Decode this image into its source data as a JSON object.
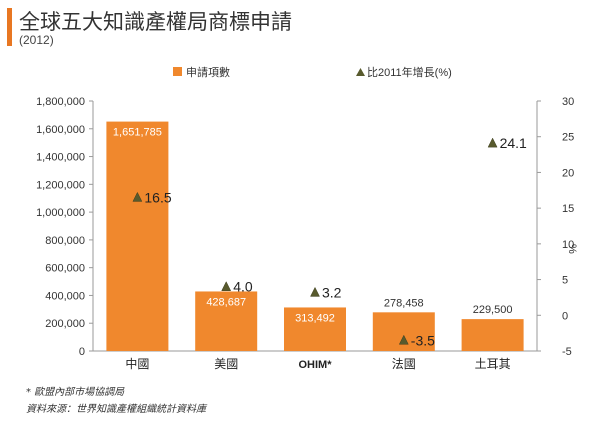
{
  "header": {
    "title": "全球五大知識產權局商標申請",
    "subtitle": "(2012)"
  },
  "colors": {
    "accent": "#E87722",
    "bar": "#F0882D",
    "marker": "#585A2D",
    "axis": "#9a9a9a",
    "text": "#333333"
  },
  "chart_data": {
    "type": "bar",
    "categories": [
      "中國",
      "美國",
      "OHIM*",
      "法國",
      "土耳其"
    ],
    "series": [
      {
        "name": "申請項數",
        "type": "bar",
        "axis": "left",
        "values": [
          1651785,
          428687,
          313492,
          278458,
          229500
        ],
        "labels": [
          "1,651,785",
          "428,687",
          "313,492",
          "278,458",
          "229,500"
        ]
      },
      {
        "name": "比2011年增長(%)",
        "type": "scatter",
        "marker": "triangle",
        "axis": "right",
        "values": [
          16.5,
          4.0,
          3.2,
          -3.5,
          24.1
        ],
        "labels": [
          "16.5",
          "4.0",
          "3.2",
          "-3.5",
          "24.1"
        ]
      }
    ],
    "y_left": {
      "ylim": [
        0,
        1800000
      ],
      "ticks": [
        "0",
        "200,000",
        "400,000",
        "600,000",
        "800,000",
        "1,000,000",
        "1,200,000",
        "1,400,000",
        "1,600,000",
        "1,800,000"
      ]
    },
    "y_right": {
      "label": "%",
      "ylim": [
        -5,
        30
      ],
      "ticks": [
        "-5",
        "0",
        "5",
        "10",
        "15",
        "20",
        "25",
        "30"
      ]
    },
    "legend_position": "top",
    "grid": false
  },
  "notes": {
    "footnote": "* 歐盟內部市場協調局",
    "source": "資料來源：世界知識產權組織統計資料庫"
  }
}
